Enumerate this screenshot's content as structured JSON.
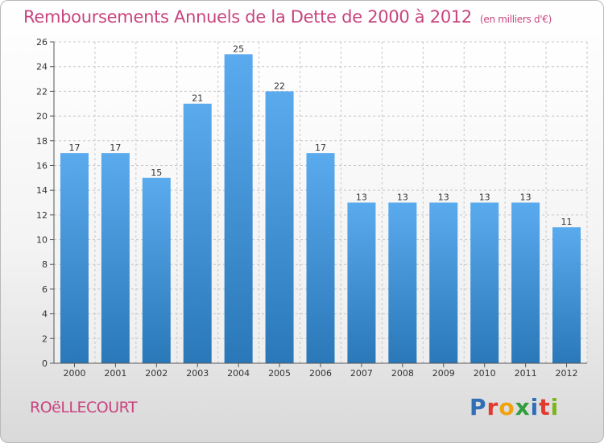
{
  "header": {
    "title": "Remboursements Annuels de la Dette de 2000 à 2012",
    "unit": "(en milliers d'€)"
  },
  "footer": {
    "commune": "ROëLLECOURT",
    "logo_text": [
      "P",
      "r",
      "o",
      "x",
      "i",
      "t",
      "i"
    ],
    "logo_colors": [
      "#2f6fb8",
      "#e23a2e",
      "#f2a20c",
      "#2f9f3d",
      "#2f6fb8",
      "#e23a2e",
      "#7cb518"
    ]
  },
  "colors": {
    "bar_top": "#5aaaee",
    "bar_bottom": "#2a78b8",
    "grid": "#c8c8c8",
    "axis": "#555555",
    "title": "#c8447f"
  },
  "chart_data": {
    "type": "bar",
    "title": "Remboursements Annuels de la Dette de 2000 à 2012",
    "xlabel": "",
    "ylabel": "",
    "categories": [
      "2000",
      "2001",
      "2002",
      "2003",
      "2004",
      "2005",
      "2006",
      "2007",
      "2008",
      "2009",
      "2010",
      "2011",
      "2012"
    ],
    "values": [
      17,
      17,
      15,
      21,
      25,
      22,
      17,
      13,
      13,
      13,
      13,
      13,
      11
    ],
    "ylim": [
      0,
      26
    ],
    "yticks": [
      0,
      2,
      4,
      6,
      8,
      10,
      12,
      14,
      16,
      18,
      20,
      22,
      24,
      26
    ],
    "grid": true,
    "legend": "none"
  }
}
